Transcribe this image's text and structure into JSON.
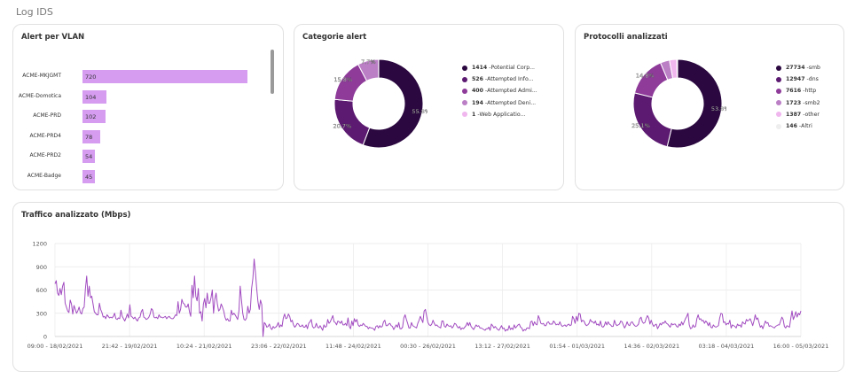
{
  "page": {
    "title": "Log IDS"
  },
  "vlan": {
    "title": "Alert per VLAN",
    "bars": [
      {
        "label": "ACME-MKJGMT",
        "value": 720
      },
      {
        "label": "ACME-Domotica",
        "value": 104
      },
      {
        "label": "ACME-PRD",
        "value": 102
      },
      {
        "label": "ACME-PRD4",
        "value": 78
      },
      {
        "label": "ACME-PRD2",
        "value": 54
      },
      {
        "label": "ACME-Badge",
        "value": 45
      }
    ],
    "max": 720
  },
  "categorie": {
    "title": "Categorie alert",
    "items": [
      {
        "count": "1414",
        "label": "Potential Corp...",
        "value": 1414,
        "color": "#2b0840",
        "pct": "55.8%"
      },
      {
        "count": "526",
        "label": "Attempted Info...",
        "value": 526,
        "color": "#5c1a71",
        "pct": "20.7%"
      },
      {
        "count": "400",
        "label": "Attempted Admi...",
        "value": 400,
        "color": "#8e3b9a",
        "pct": "15.8%"
      },
      {
        "count": "194",
        "label": "Attempted Deni...",
        "value": 194,
        "color": "#bb7fc6",
        "pct": "7.7%"
      },
      {
        "count": "1",
        "label": "Web Applicatio...",
        "value": 1,
        "color": "#f0b6ee",
        "pct": ""
      }
    ]
  },
  "protocolli": {
    "title": "Protocolli analizzati",
    "items": [
      {
        "count": "27734",
        "label": "smb",
        "value": 27734,
        "color": "#2b0840",
        "pct": "53.8%"
      },
      {
        "count": "12947",
        "label": "dns",
        "value": 12947,
        "color": "#5c1a71",
        "pct": "25.1%"
      },
      {
        "count": "7616",
        "label": "http",
        "value": 7616,
        "color": "#8e3b9a",
        "pct": "14.8%"
      },
      {
        "count": "1723",
        "label": "smb2",
        "value": 1723,
        "color": "#bb7fc6",
        "pct": ""
      },
      {
        "count": "1387",
        "label": "other",
        "value": 1387,
        "color": "#f0b6ee",
        "pct": ""
      },
      {
        "count": "146",
        "label": "Altri",
        "value": 146,
        "color": "#eeeeee",
        "pct": ""
      }
    ]
  },
  "traffico": {
    "title": "Traffico analizzato (Mbps)",
    "y_ticks": [
      "1200",
      "900",
      "600",
      "300",
      "0"
    ],
    "x_ticks": [
      "09:00 - 18/02/2021",
      "21:42 - 19/02/2021",
      "10:24 - 21/02/2021",
      "23:06 - 22/02/2021",
      "11:48 - 24/02/2021",
      "00:30 - 26/02/2021",
      "13:12 - 27/02/2021",
      "01:54 - 01/03/2021",
      "14:36 - 02/03/2021",
      "03:18 - 04/03/2021",
      "16:00 - 05/03/2021"
    ],
    "line_color": "#a14bc0"
  },
  "chart_data": {
    "type": "line",
    "title": "Traffico analizzato (Mbps)",
    "ylim": [
      0,
      1200
    ],
    "x_range": [
      "09:00 - 18/02/2021",
      "16:00 - 05/03/2021"
    ],
    "series": [
      {
        "values": [
          680,
          720,
          560,
          530,
          620,
          540,
          650,
          700,
          430,
          380,
          330,
          310,
          470,
          420,
          290,
          400,
          350,
          300,
          330,
          380,
          310,
          290,
          360,
          380,
          620,
          780,
          520,
          650,
          500,
          520,
          420,
          320,
          300,
          280,
          280,
          430,
          350,
          310,
          250,
          260,
          230,
          280,
          260,
          240,
          250,
          240,
          260,
          300,
          230,
          220,
          240,
          230,
          340,
          260,
          230,
          200,
          240,
          290,
          240,
          410,
          260,
          250,
          230,
          250,
          220,
          200,
          240,
          250,
          320,
          350,
          250,
          240,
          220,
          230,
          250,
          290,
          360,
          340,
          250,
          240,
          250,
          230,
          280,
          250,
          250,
          240,
          250,
          260,
          230,
          250,
          260,
          240,
          230,
          230,
          250,
          280,
          270,
          450,
          300,
          350,
          480,
          430,
          420,
          380,
          380,
          420,
          320,
          260,
          660,
          500,
          780,
          520,
          460,
          620,
          300,
          320,
          200,
          420,
          490,
          370,
          560,
          430,
          430,
          500,
          600,
          300,
          480,
          560,
          420,
          330,
          350,
          420,
          380,
          330,
          250,
          210,
          230,
          200,
          200,
          340,
          280,
          300,
          280,
          250,
          220,
          330,
          650,
          470,
          300,
          220,
          210,
          240,
          390,
          300,
          350,
          620,
          750,
          1000,
          830,
          620,
          450,
          350,
          470,
          410,
          0,
          180,
          160,
          120,
          130,
          160,
          110,
          90,
          130,
          110,
          120,
          140,
          180,
          120,
          150,
          130,
          240,
          290,
          230,
          240,
          290,
          260,
          190,
          210,
          150,
          120,
          140,
          170,
          160,
          130,
          130,
          150,
          120,
          120,
          150,
          100,
          170,
          190,
          220,
          130,
          110,
          120,
          170,
          120,
          110,
          140,
          110,
          80,
          150,
          120,
          130,
          220,
          170,
          190,
          230,
          270,
          190,
          180,
          150,
          200,
          190,
          170,
          200,
          150,
          150,
          170,
          140,
          240,
          130,
          100,
          200,
          140,
          230,
          190,
          220,
          150,
          130,
          150,
          140,
          170,
          150,
          130,
          130,
          100,
          120,
          110,
          110,
          100,
          80,
          130,
          140,
          110,
          140,
          120,
          130,
          190,
          210,
          140,
          140,
          160,
          170,
          140,
          130,
          90,
          120,
          150,
          120,
          180,
          100,
          100,
          120,
          240,
          280,
          220,
          170,
          110,
          110,
          180,
          140,
          130,
          120,
          110,
          170,
          210,
          260,
          220,
          180,
          330,
          350,
          260,
          180,
          150,
          140,
          160,
          210,
          170,
          140,
          150,
          130,
          120,
          110,
          200,
          200,
          130,
          120,
          160,
          140,
          130,
          140,
          110,
          130,
          170,
          160,
          130,
          110,
          130,
          90,
          110,
          100,
          120,
          140,
          180,
          140,
          180,
          130,
          110,
          90,
          120,
          150,
          130,
          140,
          110,
          110,
          100,
          90,
          80,
          100,
          100,
          120,
          80,
          160,
          140,
          110,
          130,
          110,
          90,
          80,
          110,
          140,
          100,
          110,
          70,
          90,
          80,
          140,
          90,
          110,
          90,
          150,
          110,
          130,
          150,
          160,
          120,
          110,
          70,
          90,
          80,
          110,
          110,
          100,
          190,
          200,
          140,
          190,
          160,
          150,
          270,
          230,
          170,
          160,
          170,
          140,
          140,
          180,
          190,
          160,
          160,
          160,
          200,
          180,
          150,
          160,
          150,
          190,
          150,
          130,
          140,
          150,
          130,
          150,
          160,
          140,
          150,
          260,
          230,
          170,
          260,
          200,
          300,
          290,
          190,
          210,
          200,
          160,
          140,
          150,
          170,
          220,
          190,
          190,
          170,
          200,
          150,
          160,
          140,
          200,
          130,
          120,
          140,
          190,
          150,
          190,
          160,
          150,
          130,
          130,
          210,
          160,
          140,
          150,
          160,
          200,
          190,
          150,
          110,
          140,
          190,
          150,
          140,
          180,
          190,
          160,
          140,
          130,
          140,
          160,
          230,
          250,
          190,
          170,
          180,
          230,
          270,
          240,
          160,
          210,
          160,
          130,
          150,
          160,
          100,
          130,
          170,
          150,
          180,
          170,
          200,
          170,
          160,
          140,
          120,
          170,
          150,
          160,
          160,
          130,
          120,
          160,
          140,
          190,
          150,
          190,
          230,
          260,
          300,
          150,
          100,
          110,
          150,
          120,
          130,
          230,
          280,
          220,
          230,
          200,
          210,
          170,
          200,
          180,
          140,
          180,
          120,
          110,
          150,
          130,
          120,
          130,
          140,
          240,
          300,
          290,
          180,
          190,
          150,
          170,
          160,
          210,
          110,
          150,
          140,
          130,
          110,
          160,
          140,
          150,
          120,
          190,
          170,
          160,
          220,
          200,
          210,
          230,
          190,
          140,
          200,
          280,
          220,
          240,
          180,
          120,
          140,
          100,
          150,
          200,
          170,
          180,
          130,
          140,
          130,
          120,
          110,
          130,
          140,
          150,
          150,
          200,
          250,
          220,
          130,
          110,
          140,
          130,
          120,
          230,
          330,
          220,
          260,
          320,
          250,
          300,
          280,
          330
        ]
      }
    ]
  }
}
